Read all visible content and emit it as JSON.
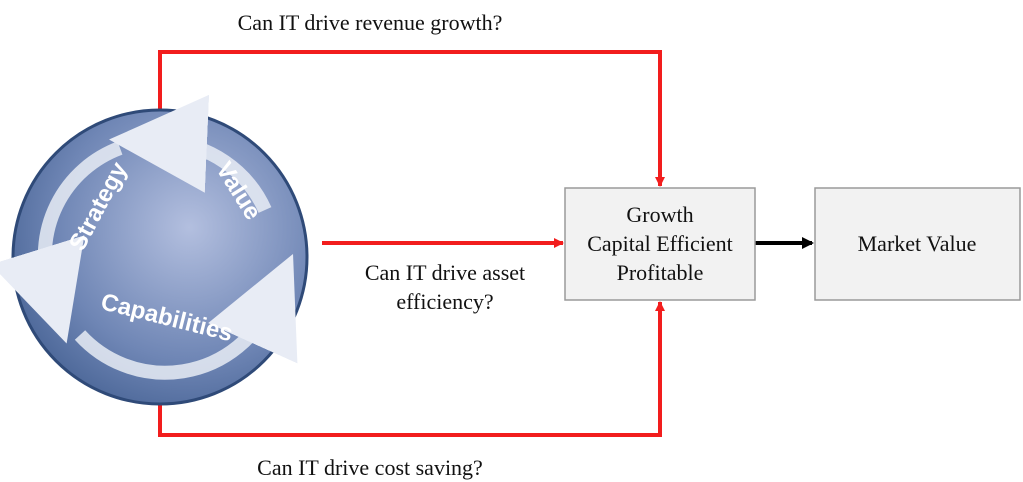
{
  "questions": {
    "revenue": "Can IT drive revenue growth?",
    "asset": [
      "Can IT drive asset",
      "efficiency?"
    ],
    "cost": "Can IT drive cost saving?"
  },
  "cycle": {
    "labels": [
      "Strategy",
      "Value",
      "Capabilities"
    ]
  },
  "boxes": [
    {
      "lines": [
        "Growth",
        "Capital Efficient",
        "Profitable"
      ]
    },
    {
      "lines": [
        "Market Value"
      ]
    }
  ]
}
